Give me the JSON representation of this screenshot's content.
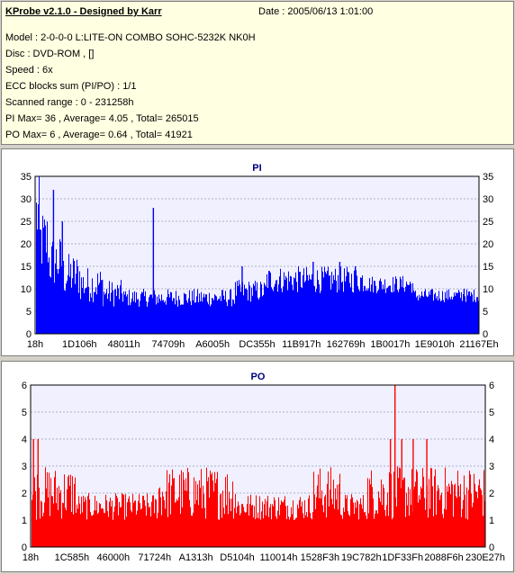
{
  "header": {
    "title": "KProbe v2.1.0 - Designed by Karr",
    "date": "Date : 2005/06/13 1:01:00",
    "lines": [
      "Model : 2-0-0-0 L:LITE-ON COMBO SOHC-5232K NK0H",
      "Disc : DVD-ROM ,  []",
      "Speed : 6x",
      "ECC blocks sum (PI/PO) : 1/1",
      "Scanned range : 0 - 231258h",
      "PI Max= 36 , Average= 4.05 , Total= 265015",
      "PO Max= 6 , Average= 0.64 , Total= 41921"
    ]
  },
  "colors": {
    "pi": "#0000ff",
    "po": "#ff0000",
    "plot_bg": "#f0f0ff",
    "grid": "#b0b0c8"
  },
  "chart_data": [
    {
      "type": "bar",
      "title": "PI",
      "ylim": [
        0,
        35
      ],
      "yticks": [
        0,
        5,
        10,
        15,
        20,
        25,
        30,
        35
      ],
      "xticks": [
        "18h",
        "1D106h",
        "48011h",
        "74709h",
        "A6005h",
        "DC355h",
        "11B917h",
        "162769h",
        "1B0017h",
        "1E9010h",
        "21167Eh"
      ],
      "segments": [
        {
          "from": 0.0,
          "to": 0.01,
          "min": 18,
          "max": 35
        },
        {
          "from": 0.01,
          "to": 0.03,
          "min": 13,
          "max": 28
        },
        {
          "from": 0.03,
          "to": 0.06,
          "min": 10,
          "max": 22
        },
        {
          "from": 0.06,
          "to": 0.1,
          "min": 8,
          "max": 18
        },
        {
          "from": 0.1,
          "to": 0.15,
          "min": 7,
          "max": 15
        },
        {
          "from": 0.15,
          "to": 0.2,
          "min": 6,
          "max": 12
        },
        {
          "from": 0.2,
          "to": 0.45,
          "min": 6,
          "max": 10
        },
        {
          "from": 0.45,
          "to": 0.52,
          "min": 7,
          "max": 12
        },
        {
          "from": 0.52,
          "to": 0.75,
          "min": 9,
          "max": 15
        },
        {
          "from": 0.75,
          "to": 0.85,
          "min": 9,
          "max": 13
        },
        {
          "from": 0.85,
          "to": 1.0,
          "min": 7,
          "max": 10
        }
      ],
      "spikes": [
        {
          "x": 0.04,
          "y": 32
        },
        {
          "x": 0.06,
          "y": 25
        },
        {
          "x": 0.15,
          "y": 12
        },
        {
          "x": 0.265,
          "y": 28
        },
        {
          "x": 0.465,
          "y": 15
        },
        {
          "x": 0.625,
          "y": 16
        },
        {
          "x": 0.685,
          "y": 16
        },
        {
          "x": 0.72,
          "y": 15
        },
        {
          "x": 0.965,
          "y": 10
        }
      ]
    },
    {
      "type": "bar",
      "title": "PO",
      "ylim": [
        0,
        6
      ],
      "yticks": [
        0,
        1,
        2,
        3,
        4,
        5,
        6
      ],
      "xticks": [
        "18h",
        "1C585h",
        "46000h",
        "71724h",
        "A1313h",
        "D5104h",
        "110014h",
        "1528F3h",
        "19C782h",
        "1DF33Fh",
        "2088F6h",
        "230E27h"
      ],
      "baseline": 1,
      "segments": [
        {
          "from": 0.0,
          "to": 0.1,
          "min": 1,
          "max": 3
        },
        {
          "from": 0.1,
          "to": 0.28,
          "min": 1,
          "max": 2
        },
        {
          "from": 0.28,
          "to": 0.45,
          "min": 1,
          "max": 3
        },
        {
          "from": 0.45,
          "to": 0.62,
          "min": 1,
          "max": 2
        },
        {
          "from": 0.62,
          "to": 0.68,
          "min": 1,
          "max": 3
        },
        {
          "from": 0.68,
          "to": 0.74,
          "min": 1,
          "max": 2
        },
        {
          "from": 0.74,
          "to": 0.85,
          "min": 1,
          "max": 3
        },
        {
          "from": 0.85,
          "to": 1.0,
          "min": 1,
          "max": 3
        }
      ],
      "spikes": [
        {
          "x": 0.005,
          "y": 4
        },
        {
          "x": 0.015,
          "y": 4
        },
        {
          "x": 0.79,
          "y": 4
        },
        {
          "x": 0.8,
          "y": 6
        },
        {
          "x": 0.815,
          "y": 4
        },
        {
          "x": 0.84,
          "y": 4
        },
        {
          "x": 0.87,
          "y": 4
        }
      ]
    }
  ]
}
